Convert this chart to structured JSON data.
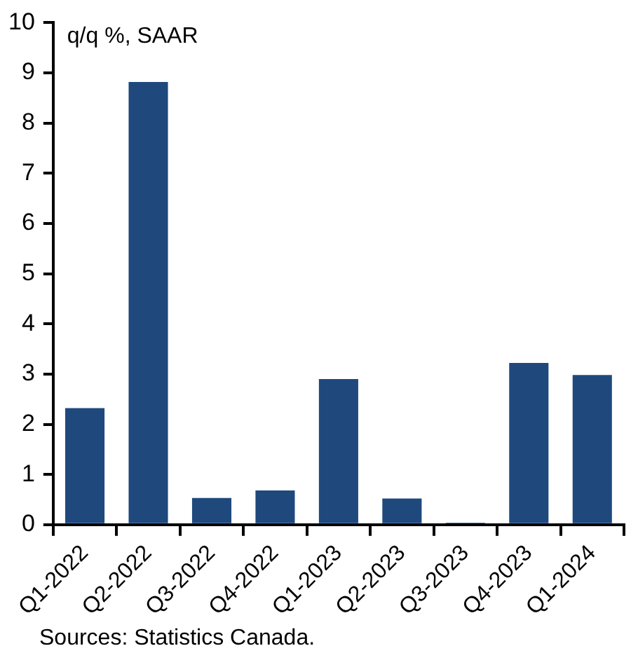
{
  "chart_data": {
    "type": "bar",
    "ylabel": "q/q %, SAAR",
    "categories": [
      "Q1-2022",
      "Q2-2022",
      "Q3-2022",
      "Q4-2022",
      "Q1-2023",
      "Q2-2023",
      "Q3-2023",
      "Q4-2023",
      "Q1-2024"
    ],
    "values": [
      2.32,
      8.82,
      0.53,
      0.68,
      2.9,
      0.52,
      0.04,
      3.22,
      2.98
    ],
    "color": "#1f497d",
    "ylim": [
      0,
      10
    ],
    "yticks": [
      0,
      1,
      2,
      3,
      4,
      5,
      6,
      7,
      8,
      9,
      10
    ],
    "grid": false,
    "legend": false,
    "annotations": [
      "Sources: Statistics Canada."
    ]
  }
}
